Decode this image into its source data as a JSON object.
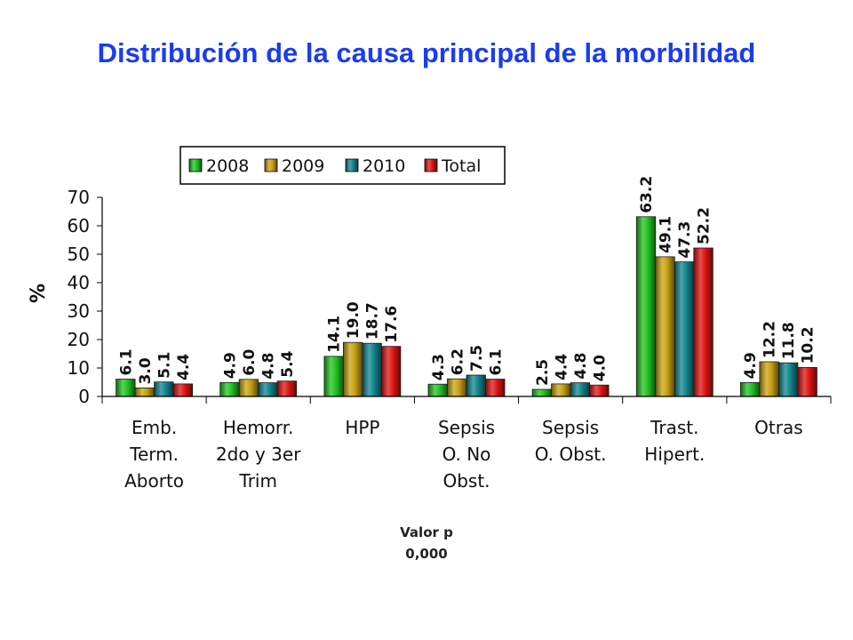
{
  "title": "Distribución de la causa principal de la morbilidad",
  "chart_data": {
    "type": "bar",
    "title": "Distribución de la causa principal de la morbilidad",
    "ylabel": "%",
    "xlabel": "",
    "ylim": [
      0,
      70
    ],
    "yticks": [
      0,
      10,
      20,
      30,
      40,
      50,
      60,
      70
    ],
    "grid": false,
    "legend_position": "top",
    "categories": [
      [
        "Emb.",
        "Term.",
        "Aborto"
      ],
      [
        "Hemorr.",
        "2do y 3er",
        "Trim"
      ],
      [
        "HPP"
      ],
      [
        "Sepsis",
        "O. No",
        "Obst."
      ],
      [
        "Sepsis",
        "O. Obst."
      ],
      [
        "Trast.",
        "Hipert."
      ],
      [
        "Otras"
      ]
    ],
    "series": [
      {
        "name": "2008",
        "color": "#22c322",
        "values": [
          6.1,
          4.9,
          14.1,
          4.3,
          2.5,
          63.2,
          4.9
        ]
      },
      {
        "name": "2009",
        "color": "#c9a212",
        "values": [
          3.0,
          6.0,
          19.0,
          6.2,
          4.4,
          49.1,
          12.2
        ]
      },
      {
        "name": "2010",
        "color": "#12858f",
        "values": [
          5.1,
          4.8,
          18.7,
          7.5,
          4.8,
          47.3,
          11.8
        ]
      },
      {
        "name": "Total",
        "color": "#e01414",
        "values": [
          4.4,
          5.4,
          17.6,
          6.1,
          4.0,
          52.2,
          10.2
        ]
      }
    ],
    "labels": [
      [
        "6.1",
        "3.0",
        "5.1",
        "4.4"
      ],
      [
        "4.9",
        "6.0",
        "4.8",
        "5.4"
      ],
      [
        "14.1",
        "19.0",
        "18.7",
        "17.6"
      ],
      [
        "4.3",
        "6.2",
        "7.5",
        "6.1"
      ],
      [
        "2.5",
        "4.4",
        "4.8",
        "4.0"
      ],
      [
        "63.2",
        "49.1",
        "47.3",
        "52.2"
      ],
      [
        "4.9",
        "12.2",
        "11.8",
        "10.2"
      ]
    ]
  },
  "footer": {
    "pvalue_label": "Valor p",
    "pvalue_value": "0,000"
  }
}
